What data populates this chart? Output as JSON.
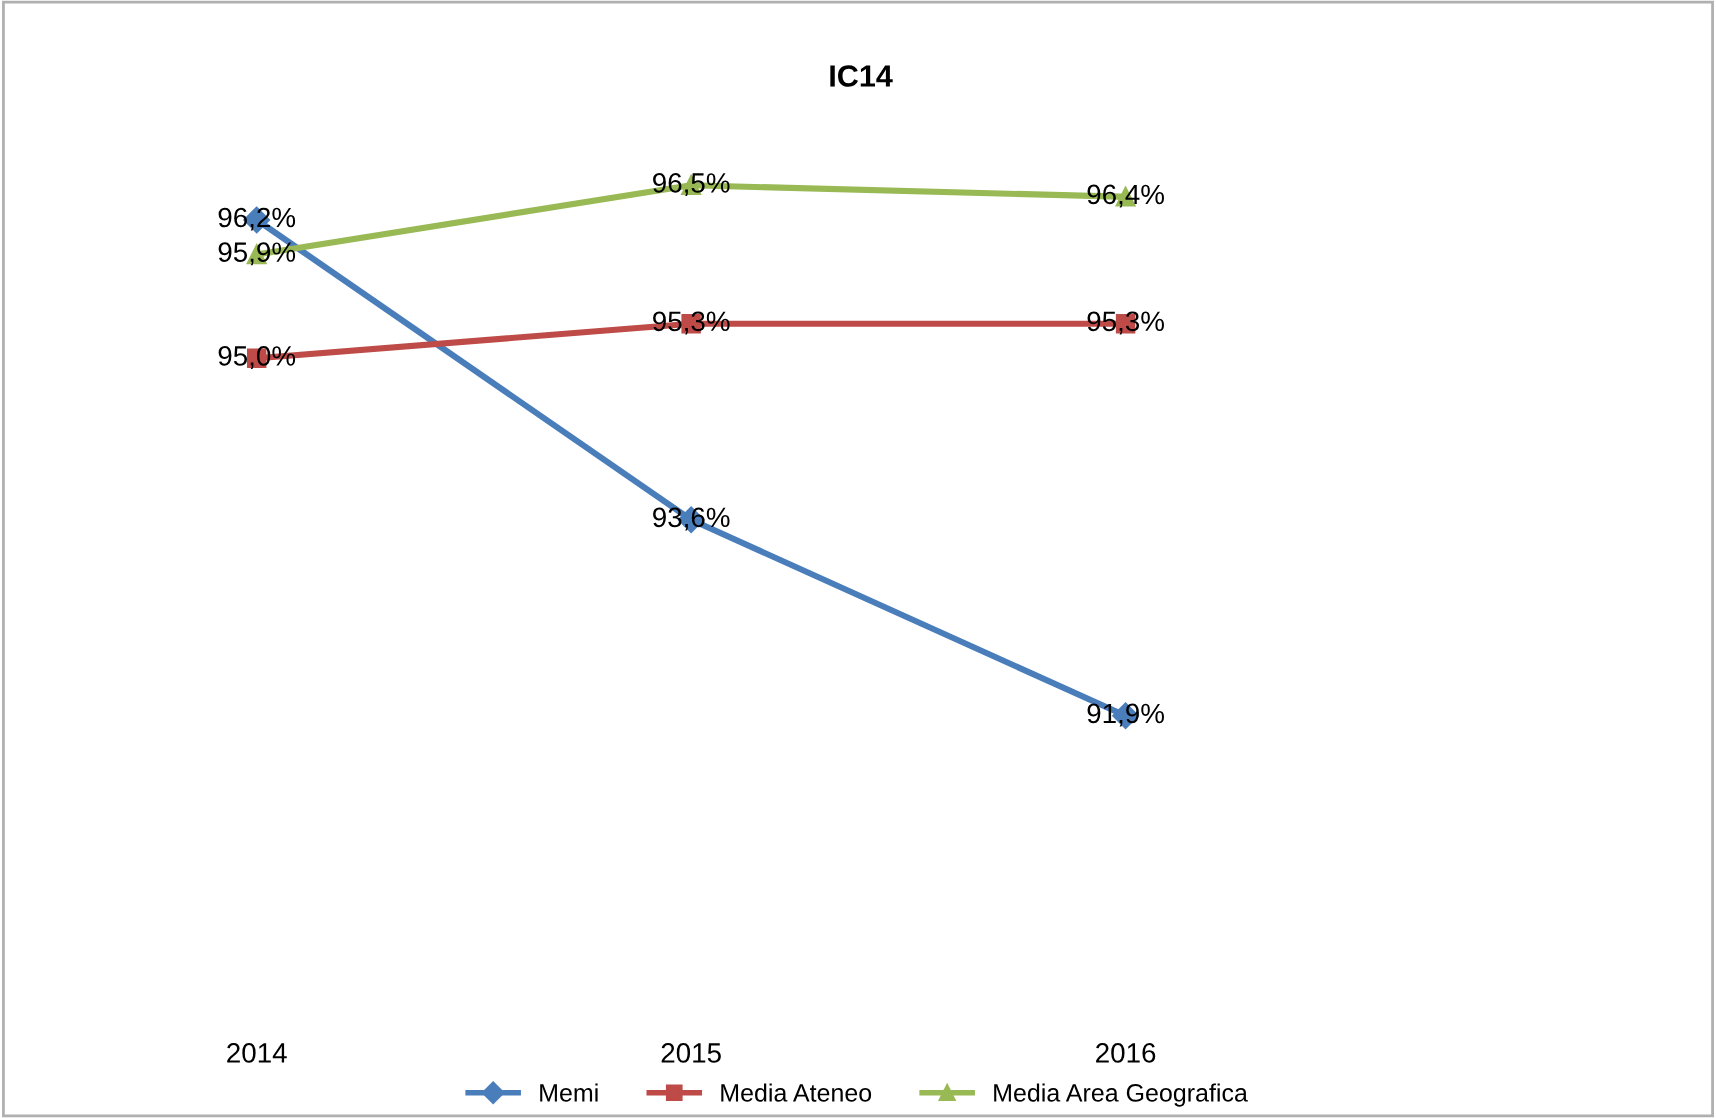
{
  "chart_data": {
    "type": "line",
    "title": "IC14",
    "categories": [
      "2014",
      "2015",
      "2016"
    ],
    "series": [
      {
        "name": "Memi",
        "color": "#4a7ebb",
        "marker": "diamond",
        "values": [
          96.2,
          93.6,
          91.9
        ],
        "value_labels": [
          "96,2%",
          "93,6%",
          "91,9%"
        ]
      },
      {
        "name": "Media Ateneo",
        "color": "#be4b48",
        "marker": "square",
        "values": [
          95.0,
          95.3,
          95.3
        ],
        "value_labels": [
          "95,0%",
          "95,3%",
          "95,3%"
        ]
      },
      {
        "name": "Media Area Geografica",
        "color": "#98b954",
        "marker": "triangle",
        "values": [
          95.9,
          96.5,
          96.4
        ],
        "value_labels": [
          "95,9%",
          "96,5%",
          "96,4%"
        ]
      }
    ],
    "grid": false,
    "legend": "bottom",
    "line_style": "solid"
  }
}
